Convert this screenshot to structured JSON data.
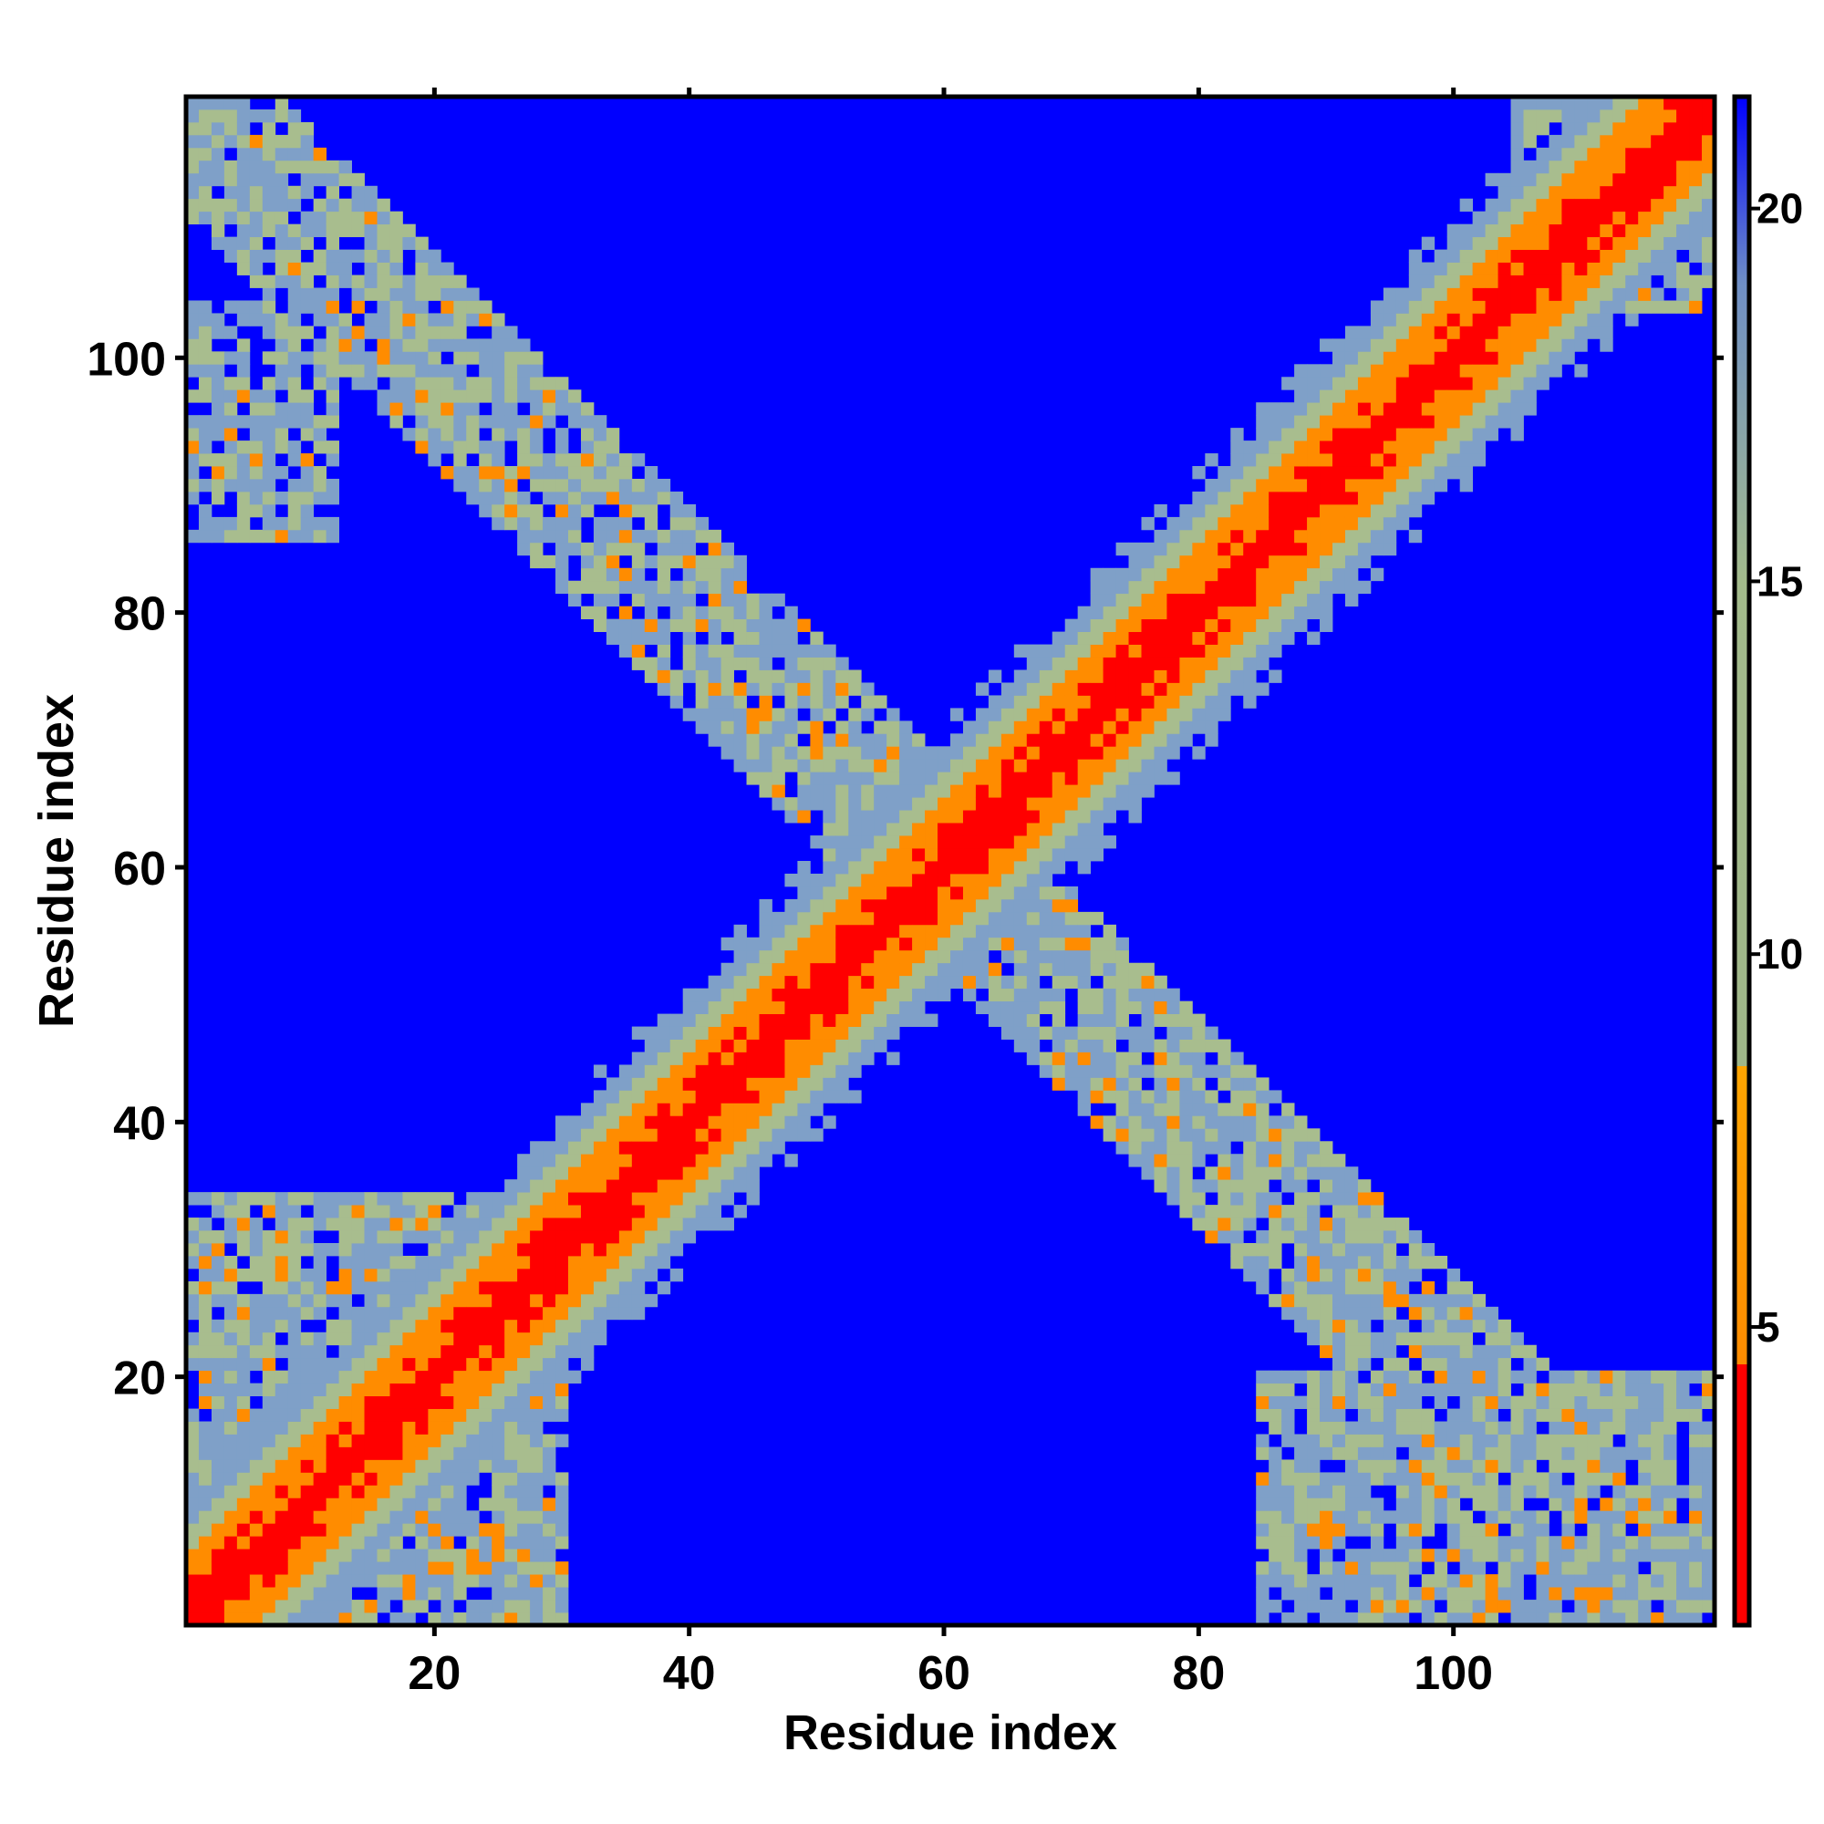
{
  "chart_data": {
    "type": "heatmap",
    "title": "",
    "xlabel": "Residue index",
    "ylabel": "Residue index",
    "xlim": [
      1,
      120
    ],
    "ylim": [
      1,
      120
    ],
    "x_ticks": [
      20,
      40,
      60,
      80,
      100
    ],
    "y_ticks": [
      20,
      40,
      60,
      80,
      100
    ],
    "x_tick_labels": [
      "20",
      "40",
      "60",
      "80",
      "100"
    ],
    "y_tick_labels": [
      "20",
      "40",
      "60",
      "80",
      "100"
    ],
    "grid": false,
    "colorbar": {
      "range": [
        1,
        21.5
      ],
      "ticks": [
        5,
        10,
        15,
        20
      ],
      "tick_labels": [
        "5",
        "10",
        "15",
        "20"
      ],
      "stops": [
        {
          "value": 1,
          "color": "#ff0000"
        },
        {
          "value": 4.5,
          "color": "#ff0000"
        },
        {
          "value": 4.5,
          "color": "#ff8c00"
        },
        {
          "value": 8.5,
          "color": "#ffa500"
        },
        {
          "value": 8.5,
          "color": "#9fb789"
        },
        {
          "value": 15,
          "color": "#a3bb8c"
        },
        {
          "value": 19,
          "color": "#6f8fc6"
        },
        {
          "value": 21.5,
          "color": "#0000ff"
        }
      ]
    },
    "colors": {
      "background_cell": "#0000ff",
      "contact_close": "#ff0000",
      "contact_near": "#ff8c00",
      "band_mid": "#a8bd8e",
      "band_far": "#7fa0c8"
    },
    "structure": {
      "matrix_size": 120,
      "diagonal_band": {
        "from": 1,
        "to": 120,
        "halfwidth_residues": 9
      },
      "anti_diagonal_band": {
        "from": [
          1,
          110
        ],
        "to": [
          115,
          10
        ],
        "halfwidth_residues": 7
      },
      "corner_blocks": [
        {
          "x": [
            1,
            12
          ],
          "y": [
            86,
            104
          ]
        },
        {
          "x": [
            1,
            30
          ],
          "y": [
            1,
            34
          ]
        },
        {
          "x": [
            85,
            120
          ],
          "y": [
            1,
            20
          ]
        },
        {
          "x": [
            105,
            120
          ],
          "y": [
            104,
            120
          ]
        }
      ]
    }
  }
}
